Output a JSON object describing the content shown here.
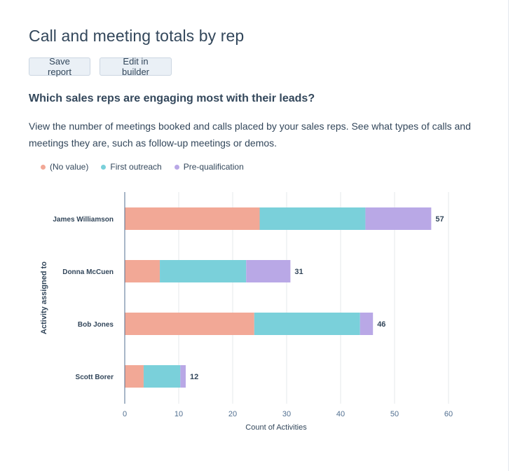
{
  "report": {
    "title": "Call and meeting totals by rep",
    "save_label": "Save report",
    "edit_label": "Edit in builder",
    "question": "Which sales reps are engaging most with their leads?",
    "description": "View the number of meetings booked and calls placed by your sales reps. See what types of calls and meetings they are, such as follow-up meetings or demos."
  },
  "chart_data": {
    "type": "bar",
    "orientation": "horizontal",
    "stacked": true,
    "categories": [
      "James Williamson",
      "Donna McCuen",
      "Bob Jones",
      "Scott Borer"
    ],
    "series": [
      {
        "name": "(No value)",
        "color": "#f2a896",
        "values": [
          25,
          6.5,
          24,
          3.5
        ]
      },
      {
        "name": "First outreach",
        "color": "#7ad0da",
        "values": [
          19.6,
          16,
          19.6,
          6.8
        ]
      },
      {
        "name": "Pre-qualification",
        "color": "#b9a8e6",
        "values": [
          12.2,
          8.2,
          2.4,
          1
        ]
      }
    ],
    "totals": [
      57,
      31,
      46,
      12
    ],
    "xlabel": "Count of Activities",
    "ylabel": "Activity assigned to",
    "xlim": [
      0,
      60
    ],
    "xticks": [
      0,
      10,
      20,
      30,
      40,
      50,
      60
    ],
    "grid": true,
    "legend_position": "top-left"
  }
}
